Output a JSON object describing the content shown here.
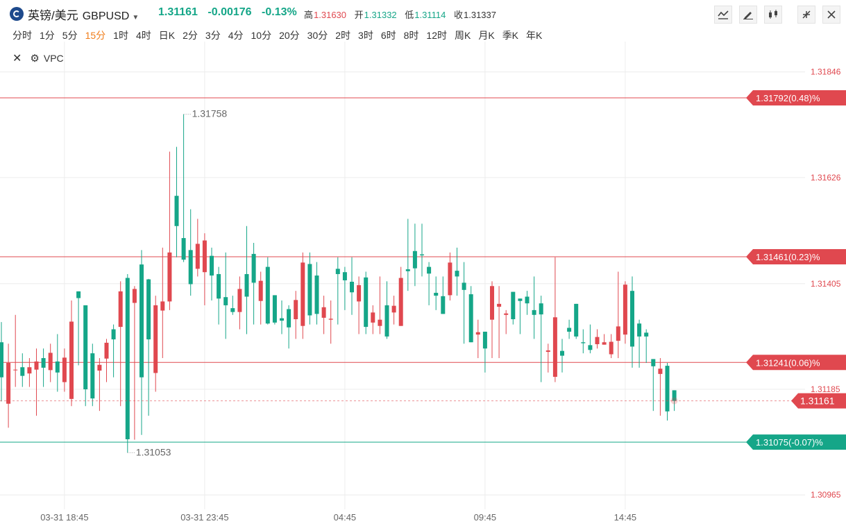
{
  "header": {
    "name": "英镑/美元",
    "code": "GBPUSD",
    "price": "1.31161",
    "change": "-0.00176",
    "change_pct": "-0.13%",
    "high_label": "高",
    "high": "1.31630",
    "open_label": "开",
    "open": "1.31332",
    "low_label": "低",
    "low": "1.31114",
    "close_label": "收",
    "close": "1.31337"
  },
  "toolbar": {
    "icons": [
      "line-chart-icon",
      "pen-icon",
      "candlestick-icon",
      "collapse-icon",
      "close-icon"
    ]
  },
  "periods": [
    "分时",
    "1分",
    "5分",
    "15分",
    "1时",
    "4时",
    "日K",
    "2分",
    "3分",
    "4分",
    "10分",
    "20分",
    "30分",
    "2时",
    "3时",
    "6时",
    "8时",
    "12时",
    "周K",
    "月K",
    "季K",
    "年K"
  ],
  "active_period": "15分",
  "indicator": {
    "name": "VPC"
  },
  "colors": {
    "up": "#e0484f",
    "down": "#15a688",
    "text": "#333333",
    "grid": "#ececec"
  },
  "chart_data": {
    "type": "candlestick",
    "ylim": [
      1.30935,
      1.31886
    ],
    "y_ticks": [
      "1.31846",
      "1.31626",
      "1.31405",
      "1.31185",
      "1.30965"
    ],
    "x_ticks": [
      "03-31 18:45",
      "03-31 23:45",
      "04:45",
      "09:45",
      "14:45"
    ],
    "x_tick_index": [
      9,
      29,
      49,
      69,
      89
    ],
    "hlines": [
      {
        "label": "1.31792(0.48)%",
        "value": 1.31792,
        "color": "#e0484f"
      },
      {
        "label": "1.31461(0.23)%",
        "value": 1.31461,
        "color": "#e0484f"
      },
      {
        "label": "1.31241(0.06)%",
        "value": 1.31241,
        "color": "#e0484f"
      },
      {
        "label": "1.31075(-0.07)%",
        "value": 1.31075,
        "color": "#15a688"
      }
    ],
    "last_price": {
      "label": "1.31161",
      "value": 1.31161
    },
    "annotations": [
      {
        "label": "1.31758",
        "value": 1.31758,
        "index": 26
      },
      {
        "label": "1.31053",
        "value": 1.31053,
        "index": 18
      }
    ],
    "candles": [
      [
        1.31283,
        1.3121,
        1.31325,
        1.3116
      ],
      [
        1.31155,
        1.3124,
        1.3128,
        1.31105
      ],
      [
        1.31226,
        1.31226,
        1.3134,
        1.3119
      ],
      [
        1.31231,
        1.31213,
        1.3126,
        1.3119
      ],
      [
        1.31218,
        1.31231,
        1.3125,
        1.3119
      ],
      [
        1.31226,
        1.31243,
        1.3127,
        1.3113
      ],
      [
        1.3125,
        1.3123,
        1.3127,
        1.3119
      ],
      [
        1.31225,
        1.31261,
        1.3128,
        1.312
      ],
      [
        1.31243,
        1.3122,
        1.313,
        1.3118
      ],
      [
        1.312,
        1.31251,
        1.3127,
        1.3118
      ],
      [
        1.31165,
        1.31326,
        1.3137,
        1.3115
      ],
      [
        1.31389,
        1.31375,
        1.3137,
        1.31235
      ],
      [
        1.3136,
        1.31185,
        1.3136,
        1.3115
      ],
      [
        1.3126,
        1.31166,
        1.3128,
        1.3115
      ],
      [
        1.31224,
        1.31236,
        1.3125,
        1.3114
      ],
      [
        1.31249,
        1.31282,
        1.3129,
        1.312
      ],
      [
        1.3131,
        1.31289,
        1.3132,
        1.3121
      ],
      [
        1.31315,
        1.31389,
        1.3141,
        1.3115
      ],
      [
        1.31417,
        1.31081,
        1.31425,
        1.31053
      ],
      [
        1.31365,
        1.31394,
        1.314,
        1.3108
      ],
      [
        1.31445,
        1.3121,
        1.31475,
        1.3109
      ],
      [
        1.31414,
        1.31289,
        1.31415,
        1.3113
      ],
      [
        1.31219,
        1.3136,
        1.3138,
        1.3118
      ],
      [
        1.31349,
        1.31368,
        1.3148,
        1.3125
      ],
      [
        1.31368,
        1.3147,
        1.3168,
        1.3135
      ],
      [
        1.31588,
        1.31525,
        1.3169,
        1.3146
      ],
      [
        1.315,
        1.31455,
        1.31758,
        1.3145
      ],
      [
        1.31475,
        1.31404,
        1.3156,
        1.3138
      ],
      [
        1.31436,
        1.31488,
        1.3154,
        1.3142
      ],
      [
        1.31429,
        1.31495,
        1.3151,
        1.3136
      ],
      [
        1.31463,
        1.31422,
        1.3148,
        1.3137
      ],
      [
        1.31425,
        1.31374,
        1.3144,
        1.3132
      ],
      [
        1.31377,
        1.3136,
        1.3147,
        1.3129
      ],
      [
        1.31354,
        1.31346,
        1.3138,
        1.3134
      ],
      [
        1.31346,
        1.31394,
        1.3142,
        1.3131
      ],
      [
        1.31425,
        1.31378,
        1.31525,
        1.313
      ],
      [
        1.31467,
        1.31407,
        1.3149,
        1.3132
      ],
      [
        1.31369,
        1.31411,
        1.3143,
        1.3132
      ],
      [
        1.3144,
        1.31322,
        1.3146,
        1.3132
      ],
      [
        1.31381,
        1.31324,
        1.3138,
        1.3132
      ],
      [
        1.31333,
        1.31328,
        1.3137,
        1.313
      ],
      [
        1.31352,
        1.31314,
        1.3136,
        1.3127
      ],
      [
        1.31331,
        1.31371,
        1.3139,
        1.3129
      ],
      [
        1.31317,
        1.31449,
        1.3147,
        1.3129
      ],
      [
        1.31446,
        1.31339,
        1.3147,
        1.3132
      ],
      [
        1.31422,
        1.31342,
        1.3145,
        1.3132
      ],
      [
        1.31334,
        1.31356,
        1.3138,
        1.313
      ],
      [
        1.3133,
        1.31332,
        1.3137,
        1.3128
      ],
      [
        1.31436,
        1.31425,
        1.3146,
        1.3132
      ],
      [
        1.31429,
        1.31412,
        1.3144,
        1.3135
      ],
      [
        1.31409,
        1.31387,
        1.3146,
        1.3134
      ],
      [
        1.31368,
        1.31402,
        1.3142,
        1.313
      ],
      [
        1.31418,
        1.31315,
        1.3143,
        1.313
      ],
      [
        1.31324,
        1.31345,
        1.3136,
        1.313
      ],
      [
        1.31317,
        1.3133,
        1.3142,
        1.313
      ],
      [
        1.3136,
        1.31295,
        1.3141,
        1.3129
      ],
      [
        1.31345,
        1.31359,
        1.3138,
        1.3132
      ],
      [
        1.31317,
        1.31417,
        1.3144,
        1.3133
      ],
      [
        1.31435,
        1.31431,
        1.3154,
        1.3139
      ],
      [
        1.31473,
        1.31437,
        1.3153,
        1.314
      ],
      [
        1.31466,
        1.31464,
        1.3153,
        1.3142
      ],
      [
        1.3144,
        1.31426,
        1.3145,
        1.3136
      ],
      [
        1.31386,
        1.3138,
        1.3142,
        1.3135
      ],
      [
        1.31379,
        1.31342,
        1.3142,
        1.3137
      ],
      [
        1.31381,
        1.31449,
        1.3147,
        1.3137
      ],
      [
        1.31432,
        1.3142,
        1.3148,
        1.3138
      ],
      [
        1.31407,
        1.31392,
        1.3145,
        1.3128
      ],
      [
        1.31383,
        1.31283,
        1.314,
        1.3129
      ],
      [
        1.31299,
        1.31304,
        1.3133,
        1.3125
      ],
      [
        1.31305,
        1.3127,
        1.3129,
        1.3122
      ],
      [
        1.3133,
        1.314,
        1.3141,
        1.3125
      ],
      [
        1.31357,
        1.31363,
        1.314,
        1.3125
      ],
      [
        1.3134,
        1.31343,
        1.3135,
        1.313
      ],
      [
        1.31388,
        1.31331,
        1.3137,
        1.3132
      ],
      [
        1.31374,
        1.31369,
        1.3137,
        1.313
      ],
      [
        1.31378,
        1.31364,
        1.3139,
        1.3134
      ],
      [
        1.3135,
        1.3134,
        1.3142,
        1.3129
      ],
      [
        1.31364,
        1.31341,
        1.3138,
        1.312
      ],
      [
        1.31263,
        1.31266,
        1.3128,
        1.3122
      ],
      [
        1.31211,
        1.31335,
        1.3146,
        1.312
      ],
      [
        1.31265,
        1.31255,
        1.3129,
        1.3122
      ],
      [
        1.31313,
        1.31305,
        1.3133,
        1.3129
      ],
      [
        1.31363,
        1.31295,
        1.3135,
        1.3129
      ],
      [
        1.31283,
        1.31281,
        1.3131,
        1.3126
      ],
      [
        1.31277,
        1.31267,
        1.3132,
        1.3126
      ],
      [
        1.31279,
        1.31294,
        1.3131,
        1.3127
      ],
      [
        1.31278,
        1.31283,
        1.313,
        1.3128
      ],
      [
        1.31258,
        1.31284,
        1.313,
        1.3125
      ],
      [
        1.31286,
        1.31316,
        1.3143,
        1.3125
      ],
      [
        1.31299,
        1.31403,
        1.3141,
        1.3128
      ],
      [
        1.3139,
        1.31274,
        1.3142,
        1.3123
      ],
      [
        1.31322,
        1.31295,
        1.3133,
        1.3123
      ],
      [
        1.31303,
        1.31295,
        1.3131,
        1.3124
      ],
      [
        1.31248,
        1.31233,
        1.3124,
        1.3114
      ],
      [
        1.31217,
        1.31228,
        1.3125,
        1.3113
      ],
      [
        1.31234,
        1.31139,
        1.3124,
        1.3112
      ],
      [
        1.31183,
        1.31161,
        1.3118,
        1.3114
      ]
    ]
  }
}
